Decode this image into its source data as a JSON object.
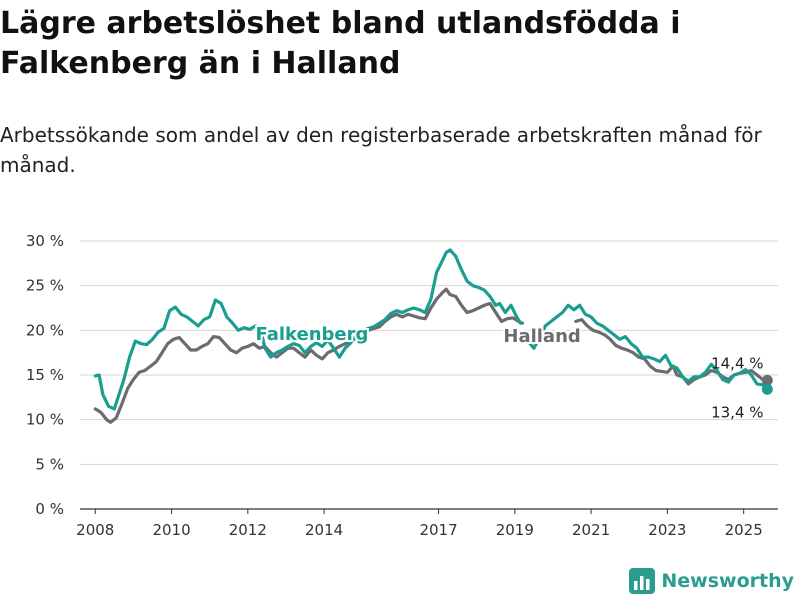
{
  "title": "Lägre arbetslöshet bland utlandsfödda i Falkenberg än i Halland",
  "subtitle": "Arbetssökande som andel av den registerbaserade arbetskraften månad för månad.",
  "brand": "Newsworthy",
  "chart_data": {
    "type": "line",
    "ylim": [
      0,
      30
    ],
    "xlim": [
      2007.6,
      2025.9
    ],
    "y_ticks": [
      0,
      5,
      10,
      15,
      20,
      25,
      30
    ],
    "y_tick_labels": [
      "0 %",
      "5 %",
      "10 %",
      "15 %",
      "20 %",
      "25 %",
      "30 %"
    ],
    "x_ticks": [
      2008,
      2010,
      2012,
      2014,
      2017,
      2019,
      2021,
      2023,
      2025
    ],
    "x_tick_labels": [
      "2008",
      "2010",
      "2012",
      "2014",
      "2017",
      "2019",
      "2021",
      "2023",
      "2025"
    ],
    "grid": "horizontal",
    "series": [
      {
        "name": "Falkenberg",
        "color": "#1a9e8f",
        "end_label": "13,4 %",
        "segments": [
          [
            [
              2008.0,
              14.9
            ],
            [
              2008.1,
              15.0
            ],
            [
              2008.2,
              12.8
            ],
            [
              2008.35,
              11.5
            ],
            [
              2008.5,
              11.2
            ],
            [
              2008.6,
              12.5
            ],
            [
              2008.75,
              14.5
            ],
            [
              2008.9,
              17.0
            ],
            [
              2009.05,
              18.8
            ],
            [
              2009.2,
              18.5
            ],
            [
              2009.35,
              18.4
            ],
            [
              2009.5,
              19.0
            ],
            [
              2009.65,
              19.8
            ],
            [
              2009.8,
              20.2
            ],
            [
              2009.95,
              22.2
            ],
            [
              2010.1,
              22.6
            ],
            [
              2010.25,
              21.8
            ],
            [
              2010.4,
              21.5
            ],
            [
              2010.55,
              21.0
            ],
            [
              2010.7,
              20.5
            ],
            [
              2010.85,
              21.2
            ],
            [
              2011.0,
              21.5
            ],
            [
              2011.15,
              23.4
            ],
            [
              2011.3,
              23.0
            ],
            [
              2011.45,
              21.5
            ],
            [
              2011.6,
              20.8
            ],
            [
              2011.75,
              20.0
            ],
            [
              2011.9,
              20.3
            ],
            [
              2012.05,
              20.1
            ],
            [
              2012.2,
              20.5
            ],
            [
              2012.35,
              19.8
            ],
            [
              2012.45,
              18.0
            ],
            [
              2012.6,
              17.0
            ],
            [
              2012.75,
              17.5
            ],
            [
              2012.9,
              17.8
            ],
            [
              2013.05,
              18.2
            ],
            [
              2013.2,
              18.5
            ],
            [
              2013.35,
              18.3
            ],
            [
              2013.5,
              17.5
            ],
            [
              2013.65,
              18.2
            ],
            [
              2013.8,
              18.6
            ],
            [
              2013.95,
              18.2
            ],
            [
              2014.1,
              18.9
            ],
            [
              2014.25,
              18.0
            ],
            [
              2014.4,
              17.0
            ],
            [
              2014.55,
              18.0
            ],
            [
              2014.7,
              18.6
            ],
            [
              2014.85,
              19.4
            ],
            [
              2015.0,
              19.9
            ],
            [
              2015.15,
              20.2
            ],
            [
              2015.3,
              20.4
            ],
            [
              2015.45,
              20.8
            ],
            [
              2015.6,
              21.2
            ],
            [
              2015.75,
              21.9
            ],
            [
              2015.9,
              22.2
            ],
            [
              2016.05,
              22.0
            ],
            [
              2016.2,
              22.3
            ],
            [
              2016.35,
              22.5
            ],
            [
              2016.5,
              22.3
            ],
            [
              2016.65,
              22.0
            ],
            [
              2016.8,
              23.5
            ],
            [
              2016.95,
              26.5
            ],
            [
              2017.1,
              27.8
            ],
            [
              2017.2,
              28.7
            ],
            [
              2017.3,
              29.0
            ],
            [
              2017.45,
              28.3
            ],
            [
              2017.6,
              26.8
            ],
            [
              2017.75,
              25.5
            ],
            [
              2017.9,
              25.0
            ],
            [
              2018.05,
              24.8
            ],
            [
              2018.2,
              24.5
            ],
            [
              2018.35,
              23.8
            ],
            [
              2018.5,
              22.8
            ],
            [
              2018.6,
              23.0
            ],
            [
              2018.75,
              22.0
            ],
            [
              2018.9,
              22.8
            ],
            [
              2019.05,
              21.5
            ],
            [
              2019.15,
              20.8
            ]
          ],
          [
            [
              2019.4,
              18.5
            ],
            [
              2019.5,
              18.0
            ],
            [
              2019.6,
              18.8
            ],
            [
              2019.7,
              19.5
            ],
            [
              2019.8,
              20.5
            ],
            [
              2019.95,
              21.0
            ],
            [
              2020.1,
              21.5
            ],
            [
              2020.25,
              22.0
            ],
            [
              2020.4,
              22.8
            ],
            [
              2020.55,
              22.3
            ],
            [
              2020.7,
              22.8
            ],
            [
              2020.85,
              21.8
            ],
            [
              2021.0,
              21.5
            ],
            [
              2021.15,
              20.8
            ],
            [
              2021.3,
              20.5
            ],
            [
              2021.45,
              20.0
            ],
            [
              2021.6,
              19.5
            ],
            [
              2021.75,
              19.0
            ],
            [
              2021.9,
              19.3
            ],
            [
              2022.05,
              18.5
            ],
            [
              2022.2,
              18.0
            ],
            [
              2022.35,
              17.0
            ],
            [
              2022.5,
              17.0
            ],
            [
              2022.65,
              16.8
            ],
            [
              2022.8,
              16.5
            ],
            [
              2022.95,
              17.2
            ],
            [
              2023.1,
              16.0
            ],
            [
              2023.25,
              15.8
            ],
            [
              2023.4,
              14.8
            ],
            [
              2023.55,
              14.3
            ],
            [
              2023.7,
              14.8
            ],
            [
              2023.85,
              14.8
            ],
            [
              2024.0,
              15.3
            ],
            [
              2024.15,
              16.2
            ],
            [
              2024.3,
              15.5
            ],
            [
              2024.45,
              14.5
            ],
            [
              2024.6,
              14.2
            ],
            [
              2024.75,
              15.0
            ],
            [
              2024.9,
              15.2
            ],
            [
              2025.05,
              15.6
            ],
            [
              2025.2,
              15.0
            ],
            [
              2025.35,
              14.0
            ],
            [
              2025.5,
              13.9
            ],
            [
              2025.62,
              13.4
            ]
          ]
        ]
      },
      {
        "name": "Halland",
        "color": "#6b6b70",
        "end_label": "14,4 %",
        "segments": [
          [
            [
              2008.0,
              11.2
            ],
            [
              2008.15,
              10.8
            ],
            [
              2008.3,
              10.0
            ],
            [
              2008.4,
              9.7
            ],
            [
              2008.55,
              10.2
            ],
            [
              2008.7,
              11.8
            ],
            [
              2008.85,
              13.5
            ],
            [
              2009.0,
              14.5
            ],
            [
              2009.15,
              15.3
            ],
            [
              2009.3,
              15.5
            ],
            [
              2009.45,
              16.0
            ],
            [
              2009.6,
              16.5
            ],
            [
              2009.75,
              17.5
            ],
            [
              2009.9,
              18.5
            ],
            [
              2010.05,
              19.0
            ],
            [
              2010.2,
              19.2
            ],
            [
              2010.35,
              18.5
            ],
            [
              2010.5,
              17.8
            ],
            [
              2010.65,
              17.8
            ],
            [
              2010.8,
              18.2
            ],
            [
              2010.95,
              18.5
            ],
            [
              2011.1,
              19.3
            ],
            [
              2011.25,
              19.2
            ],
            [
              2011.4,
              18.5
            ],
            [
              2011.55,
              17.8
            ],
            [
              2011.7,
              17.5
            ],
            [
              2011.85,
              18.0
            ],
            [
              2012.0,
              18.2
            ],
            [
              2012.15,
              18.5
            ],
            [
              2012.3,
              18.0
            ],
            [
              2012.45,
              18.2
            ],
            [
              2012.6,
              17.5
            ],
            [
              2012.75,
              17.0
            ],
            [
              2012.9,
              17.5
            ],
            [
              2013.05,
              18.0
            ],
            [
              2013.2,
              18.0
            ],
            [
              2013.35,
              17.5
            ],
            [
              2013.5,
              17.0
            ],
            [
              2013.65,
              17.8
            ],
            [
              2013.8,
              17.2
            ],
            [
              2013.95,
              16.8
            ],
            [
              2014.1,
              17.5
            ],
            [
              2014.25,
              17.8
            ],
            [
              2014.4,
              18.2
            ],
            [
              2014.55,
              18.5
            ],
            [
              2014.7,
              18.8
            ],
            [
              2014.85,
              19.2
            ],
            [
              2015.0,
              19.6
            ],
            [
              2015.15,
              20.0
            ],
            [
              2015.3,
              20.2
            ],
            [
              2015.45,
              20.4
            ],
            [
              2015.6,
              21.0
            ],
            [
              2015.75,
              21.5
            ],
            [
              2015.9,
              21.8
            ],
            [
              2016.05,
              21.5
            ],
            [
              2016.2,
              21.8
            ],
            [
              2016.35,
              21.6
            ],
            [
              2016.5,
              21.4
            ],
            [
              2016.65,
              21.3
            ],
            [
              2016.8,
              22.5
            ],
            [
              2016.95,
              23.5
            ],
            [
              2017.1,
              24.2
            ],
            [
              2017.2,
              24.6
            ],
            [
              2017.3,
              24.0
            ],
            [
              2017.45,
              23.8
            ],
            [
              2017.6,
              22.8
            ],
            [
              2017.75,
              22.0
            ],
            [
              2017.9,
              22.2
            ],
            [
              2018.05,
              22.5
            ],
            [
              2018.2,
              22.8
            ],
            [
              2018.35,
              23.0
            ],
            [
              2018.5,
              22.0
            ],
            [
              2018.65,
              21.0
            ],
            [
              2018.8,
              21.3
            ],
            [
              2018.95,
              21.4
            ],
            [
              2019.1,
              21.0
            ],
            [
              2019.2,
              20.8
            ]
          ],
          [
            [
              2020.6,
              21.0
            ],
            [
              2020.75,
              21.2
            ],
            [
              2020.9,
              20.5
            ],
            [
              2021.05,
              20.0
            ],
            [
              2021.2,
              19.8
            ],
            [
              2021.35,
              19.5
            ],
            [
              2021.5,
              19.0
            ],
            [
              2021.65,
              18.3
            ],
            [
              2021.8,
              18.0
            ],
            [
              2021.95,
              17.8
            ],
            [
              2022.1,
              17.5
            ],
            [
              2022.25,
              17.0
            ],
            [
              2022.4,
              16.8
            ],
            [
              2022.55,
              16.0
            ],
            [
              2022.7,
              15.5
            ],
            [
              2022.85,
              15.4
            ],
            [
              2023.0,
              15.3
            ],
            [
              2023.15,
              16.0
            ],
            [
              2023.25,
              15.0
            ],
            [
              2023.4,
              14.8
            ],
            [
              2023.55,
              14.0
            ],
            [
              2023.7,
              14.5
            ],
            [
              2023.85,
              14.8
            ],
            [
              2024.0,
              15.0
            ],
            [
              2024.15,
              15.5
            ],
            [
              2024.3,
              15.3
            ],
            [
              2024.45,
              14.8
            ],
            [
              2024.6,
              14.5
            ],
            [
              2024.75,
              15.0
            ],
            [
              2024.9,
              15.2
            ],
            [
              2025.05,
              15.3
            ],
            [
              2025.2,
              15.5
            ],
            [
              2025.35,
              15.0
            ],
            [
              2025.5,
              14.5
            ],
            [
              2025.62,
              14.4
            ]
          ]
        ]
      }
    ]
  }
}
